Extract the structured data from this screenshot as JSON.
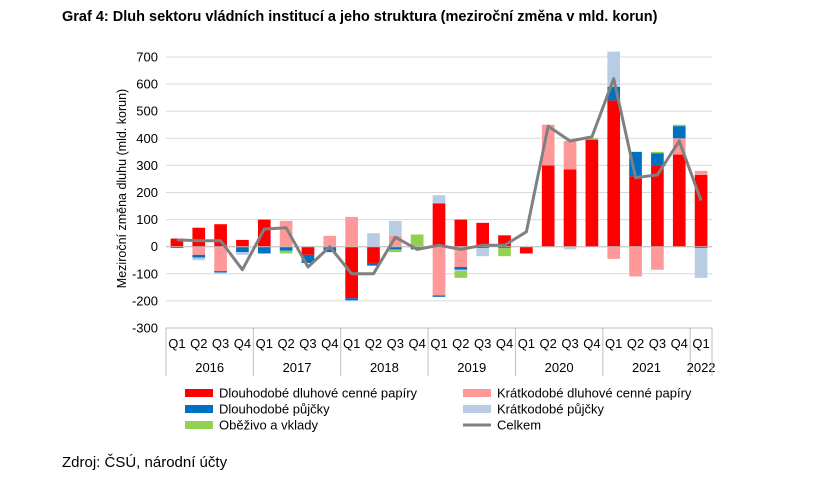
{
  "title": "Graf 4: Dluh sektoru vládních institucí a jeho struktura (meziroční změna v mld. korun)",
  "source": "Zdroj: ČSÚ, národní účty",
  "chart_data": {
    "type": "bar",
    "stacked": true,
    "ylabel": "Meziroční změna dluhu (mld. korun)",
    "ylim": [
      -300,
      700
    ],
    "yticks": [
      -300,
      -200,
      -100,
      0,
      100,
      200,
      300,
      400,
      500,
      600,
      700
    ],
    "grid": true,
    "legend_position": "bottom",
    "categories": [
      "Q1",
      "Q2",
      "Q3",
      "Q4",
      "Q1",
      "Q2",
      "Q3",
      "Q4",
      "Q1",
      "Q2",
      "Q3",
      "Q4",
      "Q1",
      "Q2",
      "Q3",
      "Q4",
      "Q1",
      "Q2",
      "Q3",
      "Q4",
      "Q1",
      "Q2",
      "Q3",
      "Q4",
      "Q1"
    ],
    "years": [
      {
        "label": "2016",
        "span": 4
      },
      {
        "label": "2017",
        "span": 4
      },
      {
        "label": "2018",
        "span": 4
      },
      {
        "label": "2019",
        "span": 4
      },
      {
        "label": "2020",
        "span": 4
      },
      {
        "label": "2021",
        "span": 4
      },
      {
        "label": "2022",
        "span": 1
      }
    ],
    "series": [
      {
        "name": "Dlouhodobé dluhové cenné papíry",
        "color": "#ff0000",
        "kind": "bar",
        "values": [
          30,
          70,
          83,
          25,
          100,
          0,
          -30,
          0,
          -190,
          -60,
          0,
          0,
          160,
          100,
          88,
          42,
          -25,
          300,
          285,
          395,
          540,
          260,
          300,
          340,
          265
        ]
      },
      {
        "name": "Krátkodobé dluhové cenné papíry",
        "color": "#ff9999",
        "kind": "bar",
        "values": [
          0,
          -30,
          -90,
          0,
          0,
          95,
          0,
          40,
          110,
          0,
          40,
          0,
          -180,
          -75,
          0,
          0,
          0,
          150,
          105,
          0,
          -45,
          -110,
          -85,
          60,
          15
        ]
      },
      {
        "name": "Dlouhodobé půjčky",
        "color": "#0070c0",
        "kind": "bar",
        "values": [
          -5,
          -10,
          -5,
          -20,
          -25,
          -15,
          -30,
          -20,
          -8,
          -10,
          -10,
          -10,
          -5,
          -10,
          -5,
          -5,
          0,
          0,
          0,
          0,
          50,
          90,
          45,
          45,
          -5
        ]
      },
      {
        "name": "Krátkodobé půjčky",
        "color": "#b8cce4",
        "kind": "bar",
        "values": [
          0,
          -10,
          -5,
          -10,
          0,
          0,
          0,
          0,
          0,
          50,
          55,
          0,
          30,
          -5,
          -30,
          0,
          0,
          0,
          -10,
          0,
          130,
          0,
          0,
          0,
          -110
        ]
      },
      {
        "name": "Oběživo a vklady",
        "color": "#92d050",
        "kind": "bar",
        "values": [
          0,
          0,
          0,
          0,
          0,
          -10,
          0,
          0,
          0,
          0,
          -10,
          45,
          0,
          -25,
          0,
          -30,
          0,
          0,
          0,
          5,
          0,
          0,
          5,
          5,
          0
        ]
      },
      {
        "name": "Celkem",
        "color": "#808080",
        "kind": "line",
        "values": [
          25,
          22,
          22,
          -85,
          65,
          70,
          -75,
          0,
          -100,
          -100,
          35,
          -10,
          5,
          -10,
          5,
          5,
          55,
          445,
          390,
          405,
          620,
          255,
          265,
          390,
          170
        ]
      }
    ]
  }
}
